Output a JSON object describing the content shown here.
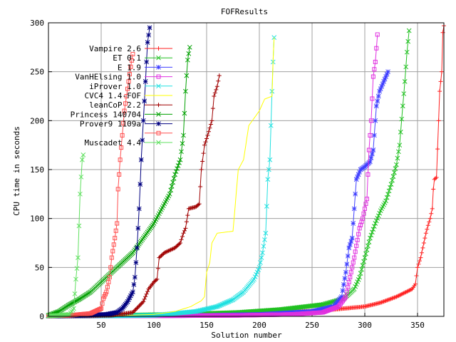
{
  "chart_data": {
    "type": "line",
    "title": "FOFResults",
    "xlabel": "Solution number",
    "ylabel": "CPU time in seconds",
    "xlim": [
      0,
      375
    ],
    "ylim": [
      0,
      300
    ],
    "xticks": [
      "50",
      "100",
      "150",
      "200",
      "250",
      "300",
      "350"
    ],
    "xtick_values": [
      50,
      100,
      150,
      200,
      250,
      300,
      350
    ],
    "yticks": [
      "0",
      "50",
      "100",
      "150",
      "200",
      "250",
      "300"
    ],
    "ytick_values": [
      0,
      50,
      100,
      150,
      200,
      250,
      300
    ],
    "grid": true,
    "legend_placement": "top-left",
    "series": [
      {
        "name": "Vampire 2.6",
        "color": "#ff2020",
        "marker": "plus",
        "points": [
          [
            0,
            0.2
          ],
          [
            40,
            0.5
          ],
          [
            100,
            0.8
          ],
          [
            150,
            1.5
          ],
          [
            180,
            2.5
          ],
          [
            200,
            3
          ],
          [
            230,
            4.5
          ],
          [
            260,
            6
          ],
          [
            280,
            8
          ],
          [
            300,
            10
          ],
          [
            315,
            14
          ],
          [
            330,
            20
          ],
          [
            345,
            28
          ],
          [
            348,
            33
          ],
          [
            350,
            50
          ],
          [
            353,
            60
          ],
          [
            356,
            75
          ],
          [
            358,
            85
          ],
          [
            360,
            93
          ],
          [
            362,
            100
          ],
          [
            364,
            110
          ],
          [
            365,
            130
          ],
          [
            366,
            140
          ],
          [
            368,
            142
          ],
          [
            370,
            200
          ],
          [
            371,
            230
          ],
          [
            372,
            240
          ],
          [
            373,
            250
          ],
          [
            374,
            290
          ],
          [
            375,
            297
          ]
        ]
      },
      {
        "name": "ET 0.1",
        "color": "#20c020",
        "marker": "cross",
        "points": [
          [
            0,
            0.5
          ],
          [
            60,
            1
          ],
          [
            120,
            2
          ],
          [
            180,
            4
          ],
          [
            220,
            7
          ],
          [
            260,
            12
          ],
          [
            280,
            18
          ],
          [
            290,
            28
          ],
          [
            295,
            40
          ],
          [
            300,
            60
          ],
          [
            305,
            80
          ],
          [
            310,
            95
          ],
          [
            315,
            108
          ],
          [
            320,
            118
          ],
          [
            325,
            135
          ],
          [
            330,
            155
          ],
          [
            333,
            175
          ],
          [
            336,
            215
          ],
          [
            338,
            240
          ],
          [
            340,
            270
          ],
          [
            342,
            292
          ]
        ]
      },
      {
        "name": "E 1.9",
        "color": "#4040ff",
        "marker": "star",
        "points": [
          [
            0,
            0.3
          ],
          [
            80,
            0.5
          ],
          [
            150,
            1
          ],
          [
            200,
            2
          ],
          [
            250,
            5
          ],
          [
            270,
            10
          ],
          [
            278,
            20
          ],
          [
            282,
            45
          ],
          [
            285,
            70
          ],
          [
            288,
            80
          ],
          [
            290,
            110
          ],
          [
            292,
            140
          ],
          [
            296,
            150
          ],
          [
            300,
            153
          ],
          [
            305,
            158
          ],
          [
            308,
            170
          ],
          [
            311,
            215
          ],
          [
            314,
            230
          ],
          [
            318,
            240
          ],
          [
            322,
            250
          ]
        ]
      },
      {
        "name": "VanHElsing 1.0",
        "color": "#e030e0",
        "marker": "square",
        "points": [
          [
            0,
            0.2
          ],
          [
            100,
            0.5
          ],
          [
            180,
            1
          ],
          [
            230,
            2
          ],
          [
            260,
            4
          ],
          [
            275,
            10
          ],
          [
            282,
            20
          ],
          [
            287,
            45
          ],
          [
            290,
            60
          ],
          [
            295,
            90
          ],
          [
            298,
            100
          ],
          [
            300,
            110
          ],
          [
            302,
            120
          ],
          [
            304,
            170
          ],
          [
            306,
            200
          ],
          [
            308,
            245
          ],
          [
            310,
            260
          ],
          [
            312,
            288
          ]
        ]
      },
      {
        "name": "iProver 1.0",
        "color": "#20e0e0",
        "marker": "x",
        "points": [
          [
            0,
            0.2
          ],
          [
            60,
            0.5
          ],
          [
            100,
            1
          ],
          [
            140,
            5
          ],
          [
            160,
            10
          ],
          [
            175,
            17
          ],
          [
            185,
            25
          ],
          [
            195,
            38
          ],
          [
            200,
            50
          ],
          [
            203,
            65
          ],
          [
            206,
            85
          ],
          [
            208,
            140
          ],
          [
            210,
            160
          ],
          [
            212,
            230
          ],
          [
            213,
            260
          ],
          [
            214,
            285
          ]
        ]
      },
      {
        "name": "CVC4 1.4-FOF",
        "color": "#ffff00",
        "marker": "line",
        "points": [
          [
            0,
            0.2
          ],
          [
            60,
            0.5
          ],
          [
            100,
            2
          ],
          [
            120,
            5
          ],
          [
            135,
            10
          ],
          [
            145,
            16
          ],
          [
            148,
            20
          ],
          [
            150,
            45
          ],
          [
            153,
            55
          ],
          [
            155,
            75
          ],
          [
            160,
            85
          ],
          [
            175,
            87
          ],
          [
            180,
            150
          ],
          [
            185,
            160
          ],
          [
            190,
            195
          ],
          [
            200,
            210
          ],
          [
            205,
            222
          ],
          [
            212,
            225
          ],
          [
            213,
            260
          ],
          [
            214,
            285
          ]
        ]
      },
      {
        "name": "leanCoP 2.2",
        "color": "#a00000",
        "marker": "plus",
        "points": [
          [
            0,
            0.2
          ],
          [
            40,
            0.5
          ],
          [
            60,
            1
          ],
          [
            80,
            4
          ],
          [
            90,
            15
          ],
          [
            95,
            28
          ],
          [
            100,
            35
          ],
          [
            103,
            38
          ],
          [
            105,
            60
          ],
          [
            110,
            65
          ],
          [
            120,
            70
          ],
          [
            125,
            75
          ],
          [
            128,
            85
          ],
          [
            130,
            90
          ],
          [
            133,
            110
          ],
          [
            140,
            112
          ],
          [
            143,
            115
          ],
          [
            145,
            150
          ],
          [
            148,
            175
          ],
          [
            151,
            185
          ],
          [
            155,
            200
          ],
          [
            157,
            225
          ],
          [
            160,
            235
          ],
          [
            162,
            246
          ]
        ]
      },
      {
        "name": "Princess 140704",
        "color": "#00a000",
        "marker": "cross",
        "points": [
          [
            0,
            1
          ],
          [
            10,
            5
          ],
          [
            20,
            12
          ],
          [
            30,
            18
          ],
          [
            40,
            25
          ],
          [
            50,
            35
          ],
          [
            60,
            45
          ],
          [
            70,
            55
          ],
          [
            80,
            65
          ],
          [
            90,
            80
          ],
          [
            100,
            95
          ],
          [
            105,
            105
          ],
          [
            110,
            115
          ],
          [
            115,
            125
          ],
          [
            120,
            145
          ],
          [
            125,
            160
          ],
          [
            128,
            185
          ],
          [
            130,
            230
          ],
          [
            132,
            262
          ],
          [
            134,
            275
          ]
        ]
      },
      {
        "name": "Prover9 1109a",
        "color": "#000080",
        "marker": "star",
        "points": [
          [
            0,
            0.5
          ],
          [
            30,
            1
          ],
          [
            55,
            2
          ],
          [
            65,
            4
          ],
          [
            70,
            8
          ],
          [
            75,
            15
          ],
          [
            80,
            25
          ],
          [
            82,
            40
          ],
          [
            84,
            70
          ],
          [
            86,
            110
          ],
          [
            88,
            160
          ],
          [
            90,
            200
          ],
          [
            92,
            240
          ],
          [
            94,
            280
          ],
          [
            96,
            295
          ]
        ]
      },
      {
        "name": "",
        "color": "#ff5050",
        "marker": "square",
        "points": [
          [
            0,
            0.5
          ],
          [
            20,
            1
          ],
          [
            40,
            3
          ],
          [
            50,
            8
          ],
          [
            52,
            18
          ],
          [
            55,
            25
          ],
          [
            58,
            40
          ],
          [
            60,
            60
          ],
          [
            63,
            80
          ],
          [
            65,
            95
          ],
          [
            66,
            130
          ],
          [
            68,
            160
          ],
          [
            70,
            185
          ],
          [
            72,
            210
          ],
          [
            74,
            225
          ],
          [
            76,
            240
          ],
          [
            78,
            255
          ],
          [
            80,
            268
          ]
        ]
      },
      {
        "name": "Muscadet 4.4",
        "color": "#60e060",
        "marker": "x",
        "points": [
          [
            0,
            0.5
          ],
          [
            10,
            1
          ],
          [
            20,
            2
          ],
          [
            24,
            8
          ],
          [
            26,
            38
          ],
          [
            28,
            60
          ],
          [
            30,
            125
          ],
          [
            32,
            160
          ],
          [
            33,
            165
          ]
        ]
      }
    ]
  }
}
